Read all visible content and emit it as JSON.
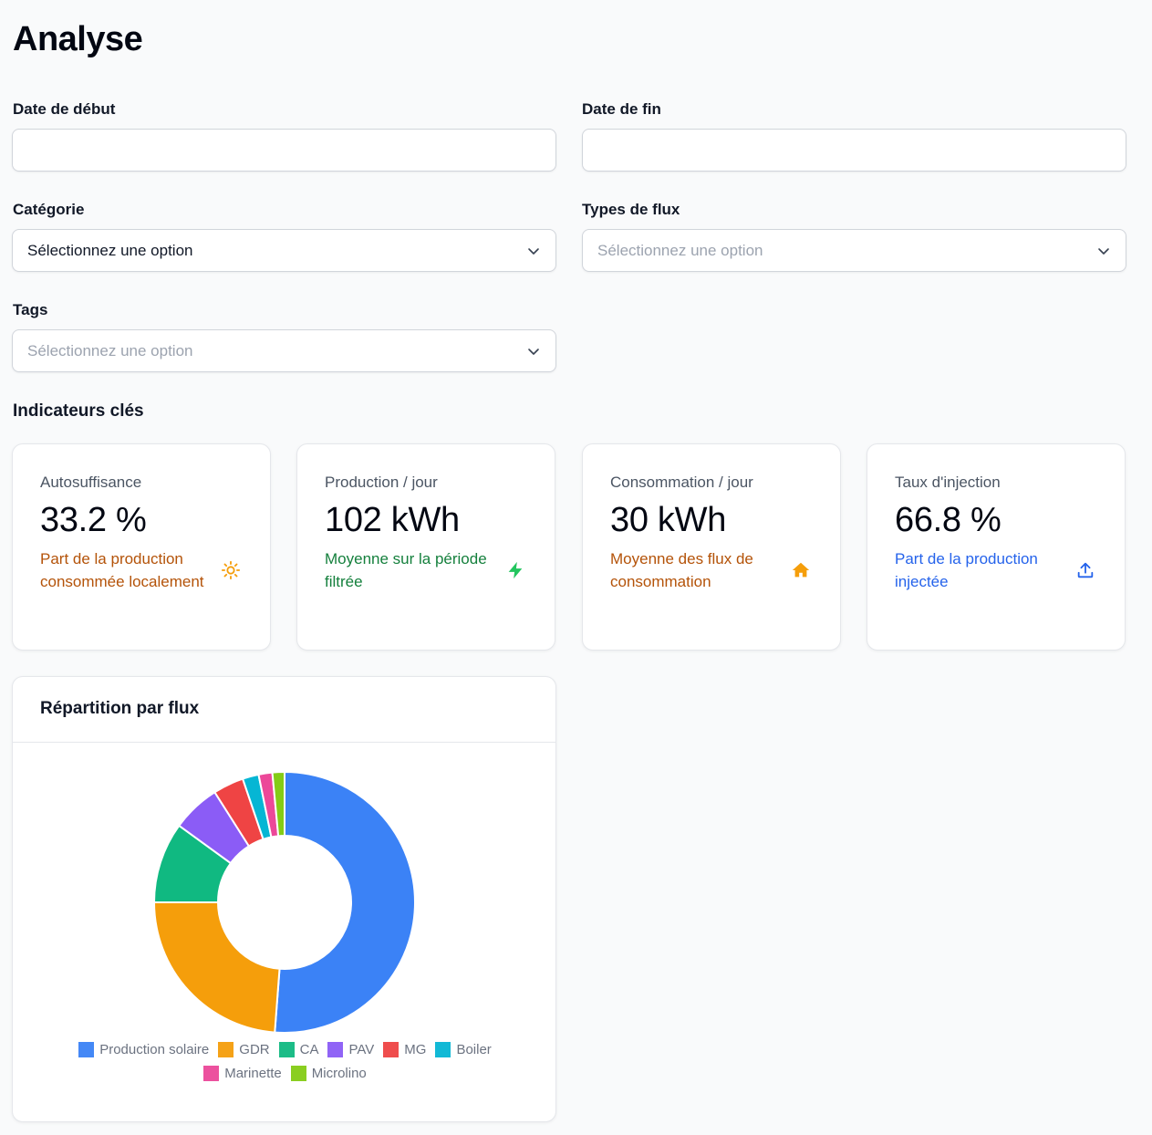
{
  "page": {
    "title": "Analyse"
  },
  "filters": {
    "start_date": {
      "label": "Date de début",
      "value": ""
    },
    "end_date": {
      "label": "Date de fin",
      "value": ""
    },
    "category": {
      "label": "Catégorie",
      "value": "Sélectionnez une option"
    },
    "flow_types": {
      "label": "Types de flux",
      "placeholder": "Sélectionnez une option"
    },
    "tags": {
      "label": "Tags",
      "placeholder": "Sélectionnez une option"
    }
  },
  "kpi": {
    "title": "Indicateurs clés",
    "cards": [
      {
        "label": "Autosuffisance",
        "value": "33.2 %",
        "desc": "Part de la production consommée localement",
        "icon": "sun-icon",
        "color": "#b45309",
        "icon_color": "#f59e0b"
      },
      {
        "label": "Production / jour",
        "value": "102 kWh",
        "desc": "Moyenne sur la période filtrée",
        "icon": "bolt-icon",
        "color": "#15803d",
        "icon_color": "#22c55e"
      },
      {
        "label": "Consommation / jour",
        "value": "30 kWh",
        "desc": "Moyenne des flux de consommation",
        "icon": "home-icon",
        "color": "#b45309",
        "icon_color": "#f59e0b"
      },
      {
        "label": "Taux d'injection",
        "value": "66.8 %",
        "desc": "Part de la production injectée",
        "icon": "upload-icon",
        "color": "#2563eb",
        "icon_color": "#2563eb"
      }
    ]
  },
  "chart_card": {
    "title": "Répartition par flux"
  },
  "chart_data": {
    "type": "pie",
    "donut": true,
    "title": "Répartition par flux",
    "legend_position": "bottom",
    "series": [
      {
        "name": "Production solaire",
        "value": 51.2,
        "color": "#3b82f6"
      },
      {
        "name": "GDR",
        "value": 23.8,
        "color": "#f59e0b"
      },
      {
        "name": "CA",
        "value": 10.0,
        "color": "#10b981"
      },
      {
        "name": "PAV",
        "value": 6.0,
        "color": "#8b5cf6"
      },
      {
        "name": "MG",
        "value": 3.8,
        "color": "#ef4444"
      },
      {
        "name": "Boiler",
        "value": 2.0,
        "color": "#06b6d4"
      },
      {
        "name": "Marinette",
        "value": 1.7,
        "color": "#ec4899"
      },
      {
        "name": "Microlino",
        "value": 1.5,
        "color": "#84cc16"
      }
    ]
  }
}
